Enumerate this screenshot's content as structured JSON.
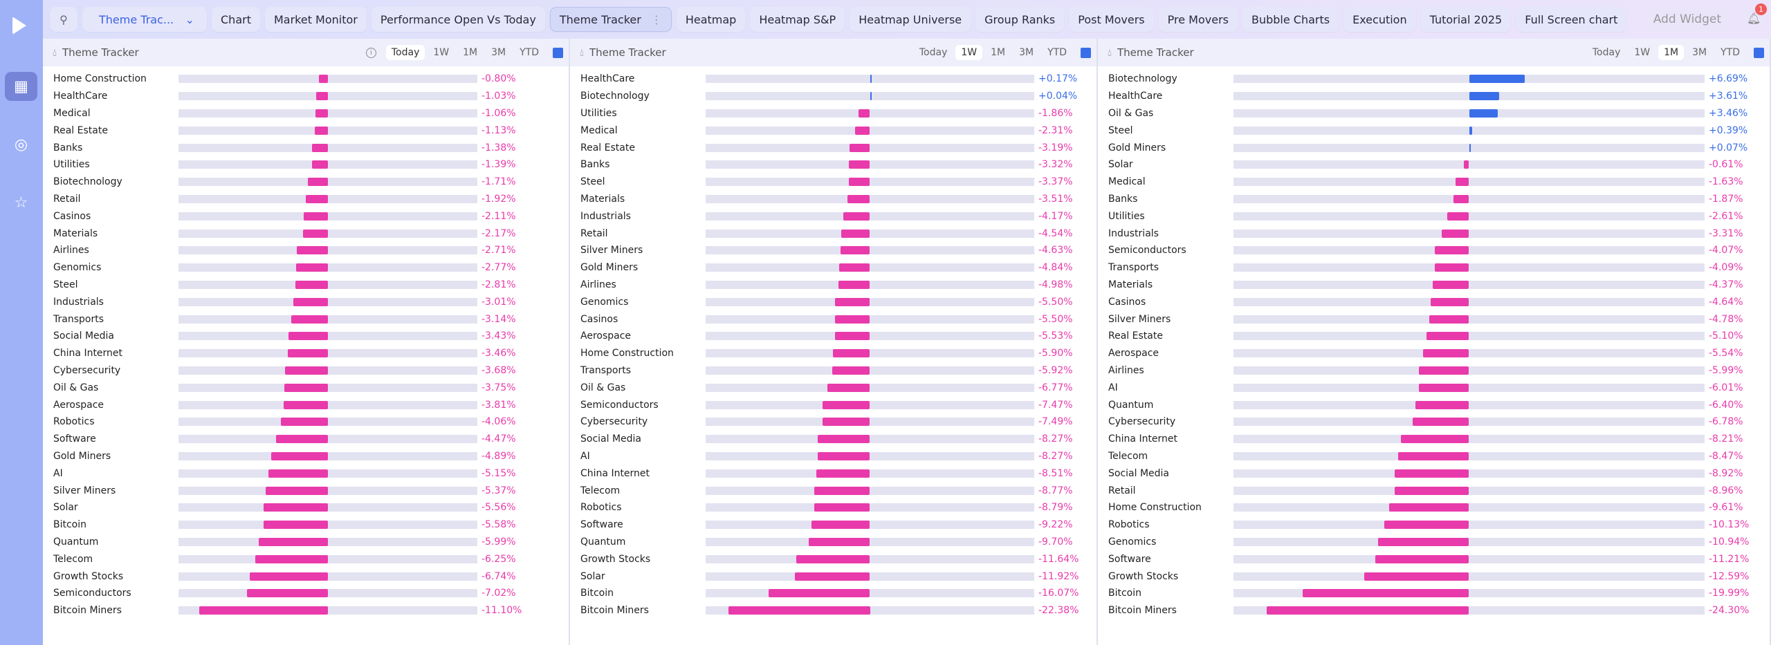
{
  "topbar": {
    "selector": "Theme Trac...",
    "tabs": [
      "Chart",
      "Market Monitor",
      "Performance Open Vs Today",
      "Theme Tracker",
      "Heatmap",
      "Heatmap S&P",
      "Heatmap Universe",
      "Group Ranks",
      "Post Movers",
      "Pre Movers",
      "Bubble Charts",
      "Execution",
      "Tutorial 2025",
      "Full Screen chart"
    ],
    "active_tab": "Theme Tracker",
    "add_widget": "Add Widget",
    "notifications": "1"
  },
  "colors": {
    "neg": "#e93aab",
    "pos": "#3a6ee8"
  },
  "periods": [
    "Today",
    "1W",
    "1M",
    "3M",
    "YTD"
  ],
  "panels": [
    {
      "title": "Theme Tracker",
      "active_period": "Today",
      "rows": [
        [
          "Home Construction",
          "-0.80%",
          -0.8
        ],
        [
          "HealthCare",
          "-1.03%",
          -1.03
        ],
        [
          "Medical",
          "-1.06%",
          -1.06
        ],
        [
          "Real Estate",
          "-1.13%",
          -1.13
        ],
        [
          "Banks",
          "-1.38%",
          -1.38
        ],
        [
          "Utilities",
          "-1.39%",
          -1.39
        ],
        [
          "Biotechnology",
          "-1.71%",
          -1.71
        ],
        [
          "Retail",
          "-1.92%",
          -1.92
        ],
        [
          "Casinos",
          "-2.11%",
          -2.11
        ],
        [
          "Materials",
          "-2.17%",
          -2.17
        ],
        [
          "Airlines",
          "-2.71%",
          -2.71
        ],
        [
          "Genomics",
          "-2.77%",
          -2.77
        ],
        [
          "Steel",
          "-2.81%",
          -2.81
        ],
        [
          "Industrials",
          "-3.01%",
          -3.01
        ],
        [
          "Transports",
          "-3.14%",
          -3.14
        ],
        [
          "Social Media",
          "-3.43%",
          -3.43
        ],
        [
          "China Internet",
          "-3.46%",
          -3.46
        ],
        [
          "Cybersecurity",
          "-3.68%",
          -3.68
        ],
        [
          "Oil & Gas",
          "-3.75%",
          -3.75
        ],
        [
          "Aerospace",
          "-3.81%",
          -3.81
        ],
        [
          "Robotics",
          "-4.06%",
          -4.06
        ],
        [
          "Software",
          "-4.47%",
          -4.47
        ],
        [
          "Gold Miners",
          "-4.89%",
          -4.89
        ],
        [
          "AI",
          "-5.15%",
          -5.15
        ],
        [
          "Silver Miners",
          "-5.37%",
          -5.37
        ],
        [
          "Solar",
          "-5.56%",
          -5.56
        ],
        [
          "Bitcoin",
          "-5.58%",
          -5.58
        ],
        [
          "Quantum",
          "-5.99%",
          -5.99
        ],
        [
          "Telecom",
          "-6.25%",
          -6.25
        ],
        [
          "Growth Stocks",
          "-6.74%",
          -6.74
        ],
        [
          "Semiconductors",
          "-7.02%",
          -7.02
        ],
        [
          "Bitcoin Miners",
          "-11.10%",
          -11.1
        ]
      ]
    },
    {
      "title": "Theme Tracker",
      "active_period": "1W",
      "rows": [
        [
          "HealthCare",
          "+0.17%",
          0.17
        ],
        [
          "Biotechnology",
          "+0.04%",
          0.04
        ],
        [
          "Utilities",
          "-1.86%",
          -1.86
        ],
        [
          "Medical",
          "-2.31%",
          -2.31
        ],
        [
          "Real Estate",
          "-3.19%",
          -3.19
        ],
        [
          "Banks",
          "-3.32%",
          -3.32
        ],
        [
          "Steel",
          "-3.37%",
          -3.37
        ],
        [
          "Materials",
          "-3.51%",
          -3.51
        ],
        [
          "Industrials",
          "-4.17%",
          -4.17
        ],
        [
          "Retail",
          "-4.54%",
          -4.54
        ],
        [
          "Silver Miners",
          "-4.63%",
          -4.63
        ],
        [
          "Gold Miners",
          "-4.84%",
          -4.84
        ],
        [
          "Airlines",
          "-4.98%",
          -4.98
        ],
        [
          "Genomics",
          "-5.50%",
          -5.5
        ],
        [
          "Casinos",
          "-5.50%",
          -5.5
        ],
        [
          "Aerospace",
          "-5.53%",
          -5.53
        ],
        [
          "Home Construction",
          "-5.90%",
          -5.9
        ],
        [
          "Transports",
          "-5.92%",
          -5.92
        ],
        [
          "Oil & Gas",
          "-6.77%",
          -6.77
        ],
        [
          "Semiconductors",
          "-7.47%",
          -7.47
        ],
        [
          "Cybersecurity",
          "-7.49%",
          -7.49
        ],
        [
          "Social Media",
          "-8.27%",
          -8.27
        ],
        [
          "AI",
          "-8.27%",
          -8.27
        ],
        [
          "China Internet",
          "-8.51%",
          -8.51
        ],
        [
          "Telecom",
          "-8.77%",
          -8.77
        ],
        [
          "Robotics",
          "-8.79%",
          -8.79
        ],
        [
          "Software",
          "-9.22%",
          -9.22
        ],
        [
          "Quantum",
          "-9.70%",
          -9.7
        ],
        [
          "Growth Stocks",
          "-11.64%",
          -11.64
        ],
        [
          "Solar",
          "-11.92%",
          -11.92
        ],
        [
          "Bitcoin",
          "-16.07%",
          -16.07
        ],
        [
          "Bitcoin Miners",
          "-22.38%",
          -22.38
        ]
      ]
    },
    {
      "title": "Theme Tracker",
      "active_period": "1M",
      "rows": [
        [
          "Biotechnology",
          "+6.69%",
          6.69
        ],
        [
          "HealthCare",
          "+3.61%",
          3.61
        ],
        [
          "Oil & Gas",
          "+3.46%",
          3.46
        ],
        [
          "Steel",
          "+0.39%",
          0.39
        ],
        [
          "Gold Miners",
          "+0.07%",
          0.07
        ],
        [
          "Solar",
          "-0.61%",
          -0.61
        ],
        [
          "Medical",
          "-1.63%",
          -1.63
        ],
        [
          "Banks",
          "-1.87%",
          -1.87
        ],
        [
          "Utilities",
          "-2.61%",
          -2.61
        ],
        [
          "Industrials",
          "-3.31%",
          -3.31
        ],
        [
          "Semiconductors",
          "-4.07%",
          -4.07
        ],
        [
          "Transports",
          "-4.09%",
          -4.09
        ],
        [
          "Materials",
          "-4.37%",
          -4.37
        ],
        [
          "Casinos",
          "-4.64%",
          -4.64
        ],
        [
          "Silver Miners",
          "-4.78%",
          -4.78
        ],
        [
          "Real Estate",
          "-5.10%",
          -5.1
        ],
        [
          "Aerospace",
          "-5.54%",
          -5.54
        ],
        [
          "Airlines",
          "-5.99%",
          -5.99
        ],
        [
          "AI",
          "-6.01%",
          -6.01
        ],
        [
          "Quantum",
          "-6.40%",
          -6.4
        ],
        [
          "Cybersecurity",
          "-6.78%",
          -6.78
        ],
        [
          "China Internet",
          "-8.21%",
          -8.21
        ],
        [
          "Telecom",
          "-8.47%",
          -8.47
        ],
        [
          "Social Media",
          "-8.92%",
          -8.92
        ],
        [
          "Retail",
          "-8.96%",
          -8.96
        ],
        [
          "Home Construction",
          "-9.61%",
          -9.61
        ],
        [
          "Robotics",
          "-10.13%",
          -10.13
        ],
        [
          "Genomics",
          "-10.94%",
          -10.94
        ],
        [
          "Software",
          "-11.21%",
          -11.21
        ],
        [
          "Growth Stocks",
          "-12.59%",
          -12.59
        ],
        [
          "Bitcoin",
          "-19.99%",
          -19.99
        ],
        [
          "Bitcoin Miners",
          "-24.30%",
          -24.3
        ]
      ]
    }
  ]
}
